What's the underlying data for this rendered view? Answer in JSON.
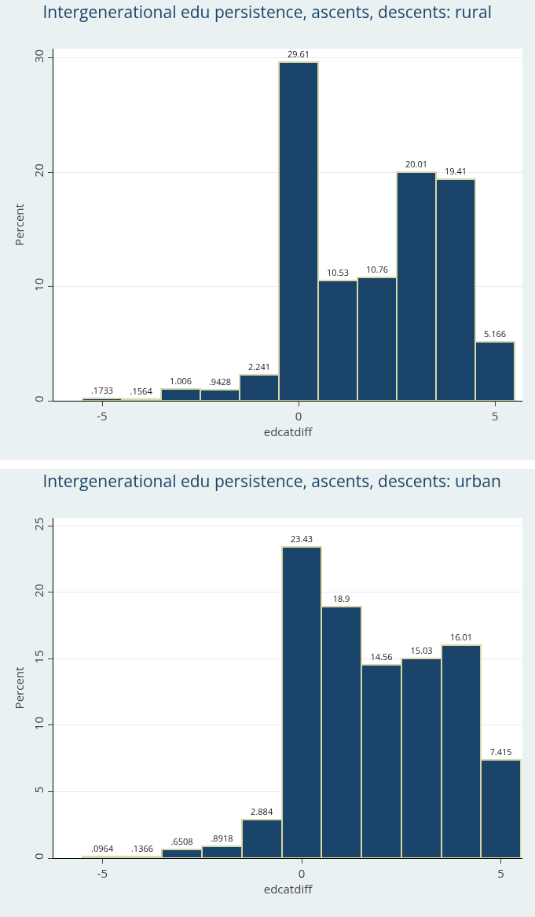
{
  "chart_data": [
    {
      "type": "histogram",
      "title": "Intergenerational edu persistence, ascents, descents: rural",
      "xlabel": "edcatdiff",
      "ylabel": "Percent",
      "bins": [
        -5.5,
        -4.5,
        -3.5,
        -2.5,
        -1.5,
        -0.5,
        0.5,
        1.5,
        2.5,
        3.5,
        4.5,
        5.5
      ],
      "values": [
        0.1733,
        0.1564,
        1.006,
        0.9428,
        2.241,
        29.61,
        10.53,
        10.76,
        20.01,
        19.41,
        5.166
      ],
      "value_labels": [
        ".1733",
        ".1564",
        "1.006",
        ".9428",
        "2.241",
        "29.61",
        "10.53",
        "10.76",
        "20.01",
        "19.41",
        "5.166"
      ],
      "color": "#1a4469",
      "xlim": [
        -6.24,
        5.7
      ],
      "xticks": [
        -5,
        0,
        5
      ],
      "ylim": [
        0,
        30.8
      ],
      "yticks": [
        0,
        10,
        20,
        30
      ],
      "grid": "y"
    },
    {
      "type": "histogram",
      "title": "Intergenerational edu persistence, ascents, descents: urban",
      "xlabel": "edcatdiff",
      "ylabel": "Percent",
      "bins": [
        -5.5,
        -4.5,
        -3.5,
        -2.5,
        -1.5,
        -0.5,
        0.5,
        1.5,
        2.5,
        3.5,
        4.5,
        5.5
      ],
      "values": [
        0.0964,
        0.1366,
        0.6508,
        0.8918,
        2.884,
        23.43,
        18.9,
        14.56,
        15.03,
        16.01,
        7.415
      ],
      "value_labels": [
        ".0964",
        ".1366",
        ".6508",
        ".8918",
        "2.884",
        "23.43",
        "18.9",
        "14.56",
        "15.03",
        "16.01",
        "7.415"
      ],
      "color": "#1a4469",
      "xlim": [
        -6.23,
        5.54
      ],
      "xticks": [
        -5,
        0,
        5
      ],
      "ylim": [
        0,
        25.6
      ],
      "yticks": [
        0,
        5,
        10,
        15,
        20,
        25
      ],
      "grid": "y"
    }
  ]
}
